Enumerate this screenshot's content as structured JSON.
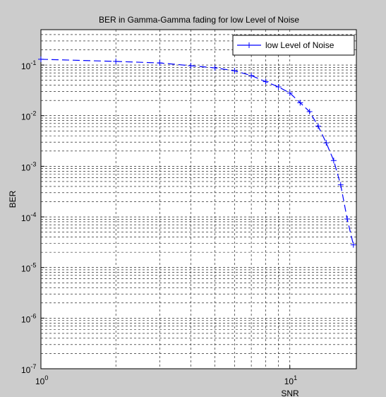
{
  "chart_data": {
    "type": "line",
    "title": "BER in Gamma-Gamma fading for low Level of Noise",
    "x_label": "SNR",
    "y_label": "BER",
    "x_scale": "log",
    "y_scale": "log",
    "x": [
      1,
      2,
      3,
      4,
      5,
      6,
      7,
      8,
      9,
      10,
      11,
      12,
      13,
      14,
      15,
      16,
      17,
      18
    ],
    "series": [
      {
        "name": "low Level of Noise",
        "color": "#0000ff",
        "values": [
          0.13,
          0.118,
          0.11,
          0.097,
          0.088,
          0.077,
          0.062,
          0.047,
          0.037,
          0.028,
          0.018,
          0.012,
          0.0062,
          0.0029,
          0.0013,
          0.00043,
          9.1e-05,
          2.8e-05
        ]
      }
    ],
    "xlim": [
      1,
      18.5
    ],
    "ylim": [
      1e-07,
      0.5
    ],
    "xticks": [
      {
        "value": 1,
        "label": "10^0"
      },
      {
        "value": 10,
        "label": "10^1"
      }
    ],
    "yticks": [
      {
        "value": 1e-07,
        "label": "10^-7"
      },
      {
        "value": 1e-06,
        "label": "10^-6"
      },
      {
        "value": 1e-05,
        "label": "10^-5"
      },
      {
        "value": 0.0001,
        "label": "10^-4"
      },
      {
        "value": 0.001,
        "label": "10^-3"
      },
      {
        "value": 0.01,
        "label": "10^-2"
      },
      {
        "value": 0.1,
        "label": "10^-1"
      }
    ],
    "grid": true,
    "minor_grid": true,
    "legend": "top-right"
  }
}
